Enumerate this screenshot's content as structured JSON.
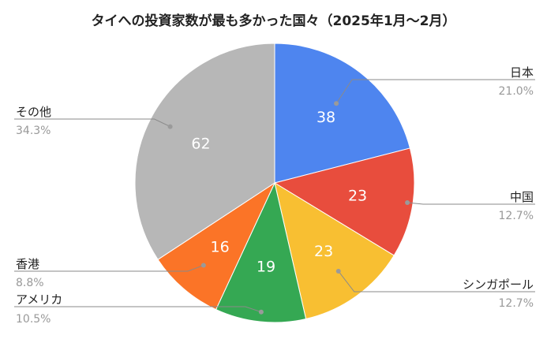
{
  "chart_data": {
    "type": "pie",
    "title": "タイへの投資家数が最も多かった国々（2025年1月〜2月）",
    "slices": [
      {
        "label": "日本",
        "value": 38,
        "percent": "21.0%",
        "color": "#4e85ef"
      },
      {
        "label": "中国",
        "value": 23,
        "percent": "12.7%",
        "color": "#e84d3d"
      },
      {
        "label": "シンガポール",
        "value": 23,
        "percent": "12.7%",
        "color": "#f8bf32"
      },
      {
        "label": "アメリカ",
        "value": 19,
        "percent": "10.5%",
        "color": "#35a853"
      },
      {
        "label": "香港",
        "value": 16,
        "percent": "8.8%",
        "color": "#fb7427"
      },
      {
        "label": "その他",
        "value": 62,
        "percent": "34.3%",
        "color": "#b7b7b7"
      }
    ],
    "start_angle_deg": 0,
    "direction": "clockwise",
    "legend": "leader-line labels outside slices"
  }
}
